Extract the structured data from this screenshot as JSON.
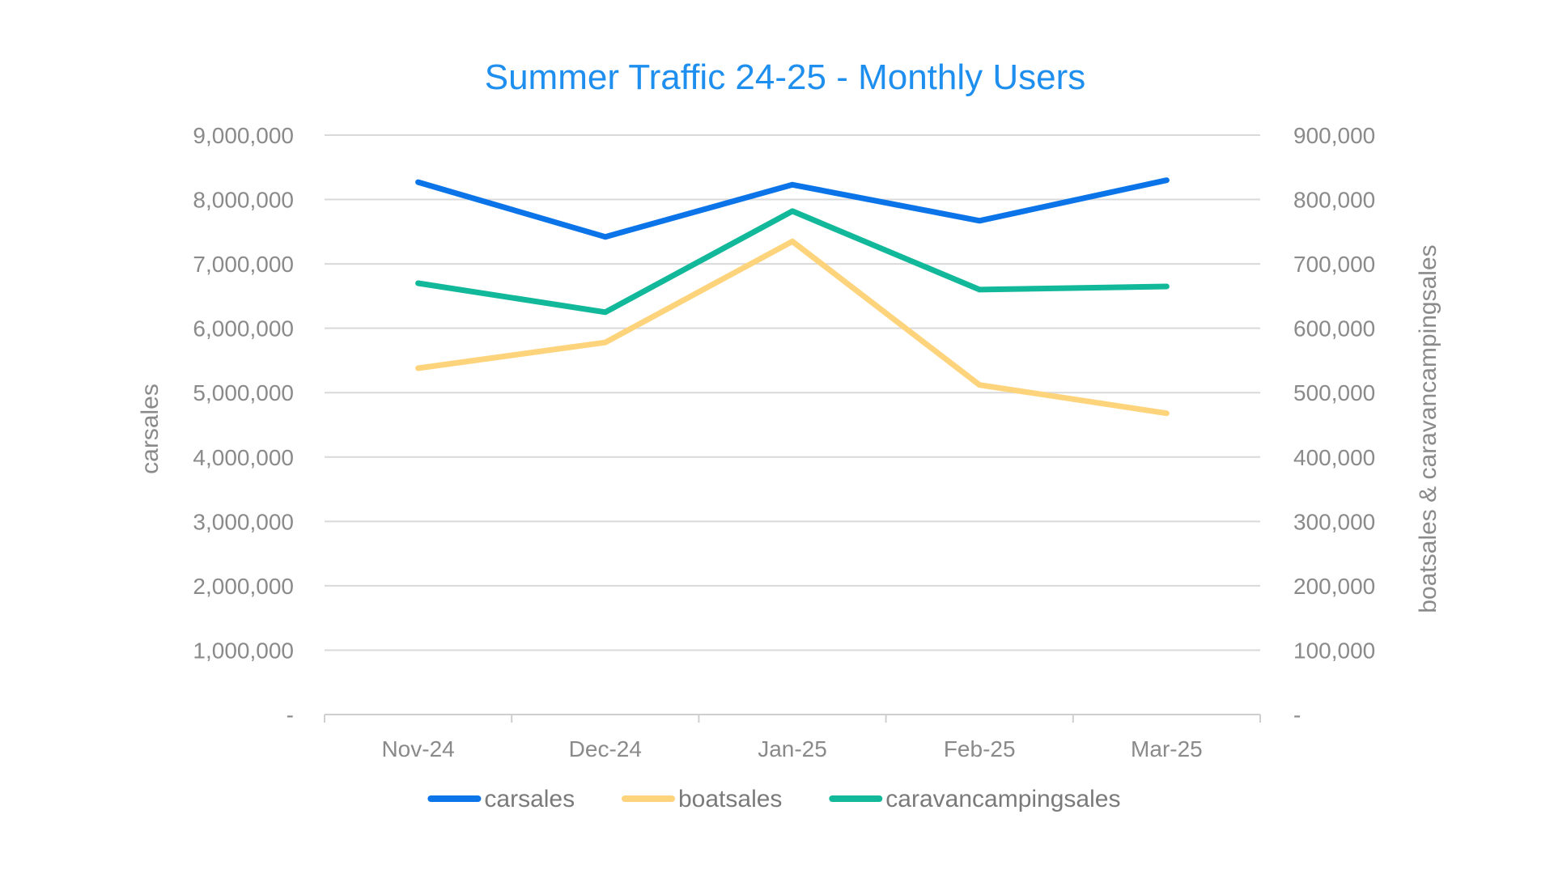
{
  "chart_data": {
    "type": "line",
    "title": "Summer Traffic 24-25 - Monthly Users",
    "categories": [
      "Nov-24",
      "Dec-24",
      "Jan-25",
      "Feb-25",
      "Mar-25"
    ],
    "y_left": {
      "label": "carsales",
      "ylim": [
        0,
        9000000
      ],
      "ticks": [
        0,
        1000000,
        2000000,
        3000000,
        4000000,
        5000000,
        6000000,
        7000000,
        8000000,
        9000000
      ],
      "tick_labels": [
        "-",
        "1,000,000",
        "2,000,000",
        "3,000,000",
        "4,000,000",
        "5,000,000",
        "6,000,000",
        "7,000,000",
        "8,000,000",
        "9,000,000"
      ]
    },
    "y_right": {
      "label": "boatsales & caravancampingsales",
      "ylim": [
        0,
        900000
      ],
      "ticks": [
        0,
        100000,
        200000,
        300000,
        400000,
        500000,
        600000,
        700000,
        800000,
        900000
      ],
      "tick_labels": [
        "-",
        "100,000",
        "200,000",
        "300,000",
        "400,000",
        "500,000",
        "600,000",
        "700,000",
        "800,000",
        "900,000"
      ]
    },
    "series": [
      {
        "name": "carsales",
        "axis": "left",
        "color": "#0a74e8",
        "values": [
          8270000,
          7420000,
          8230000,
          7670000,
          8300000
        ]
      },
      {
        "name": "boatsales",
        "axis": "right",
        "color": "#fdd47c",
        "values": [
          538000,
          578000,
          735000,
          512000,
          468000
        ]
      },
      {
        "name": "caravancampingsales",
        "axis": "right",
        "color": "#12b89a",
        "values": [
          670000,
          625000,
          782000,
          660000,
          665000
        ]
      }
    ],
    "grid": true,
    "legend_position": "bottom",
    "title_color": "#1e8fef"
  }
}
